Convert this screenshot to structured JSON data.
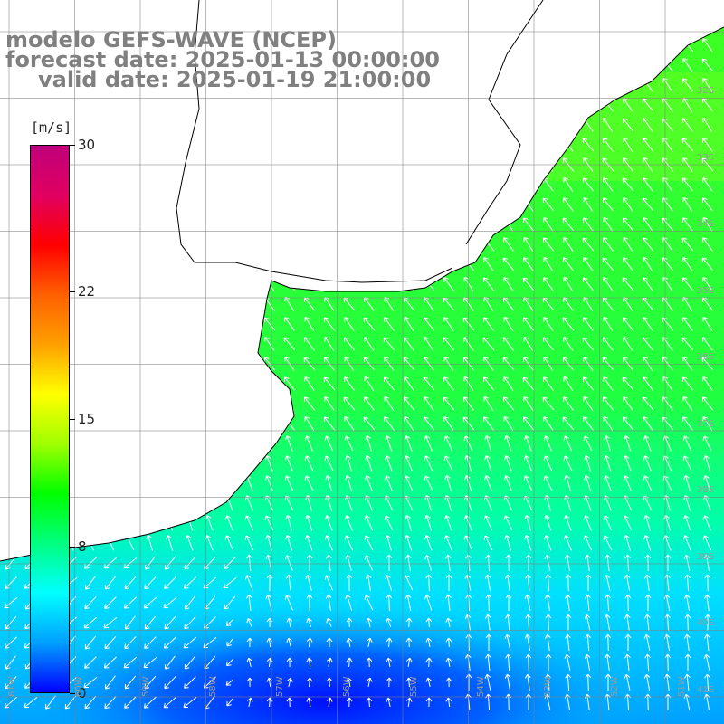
{
  "title": {
    "line1": "modelo GEFS-WAVE (NCEP)",
    "line2": "forecast date: 2025-01-13 00:00:00",
    "line3": "valid date: 2025-01-19 21:00:00"
  },
  "colorbar": {
    "unit": "[m/s]",
    "min": 0,
    "max": 30,
    "ticks": [
      "30",
      "22",
      "15",
      "8",
      "0"
    ],
    "colors": [
      "#0000ff",
      "#00a0ff",
      "#00ffff",
      "#00ff80",
      "#00ff00",
      "#a0ff00",
      "#ffff00",
      "#ffa000",
      "#ff6000",
      "#ff0000",
      "#e00060",
      "#c0007a"
    ]
  },
  "map": {
    "variable": "wind speed",
    "units": "m/s",
    "lat_labels": [
      "32S",
      "33S",
      "34S",
      "35S",
      "36S",
      "37S",
      "38S",
      "39S",
      "40S",
      "41S"
    ],
    "lon_labels": [
      "61W",
      "60W",
      "59W",
      "58W",
      "57W",
      "56W",
      "55W",
      "54W",
      "53W",
      "52W",
      "51W"
    ],
    "land_color": "#ffffff",
    "grid_color": "#808080",
    "arrow_color": "#ffffff",
    "coast_color": "#000000"
  }
}
